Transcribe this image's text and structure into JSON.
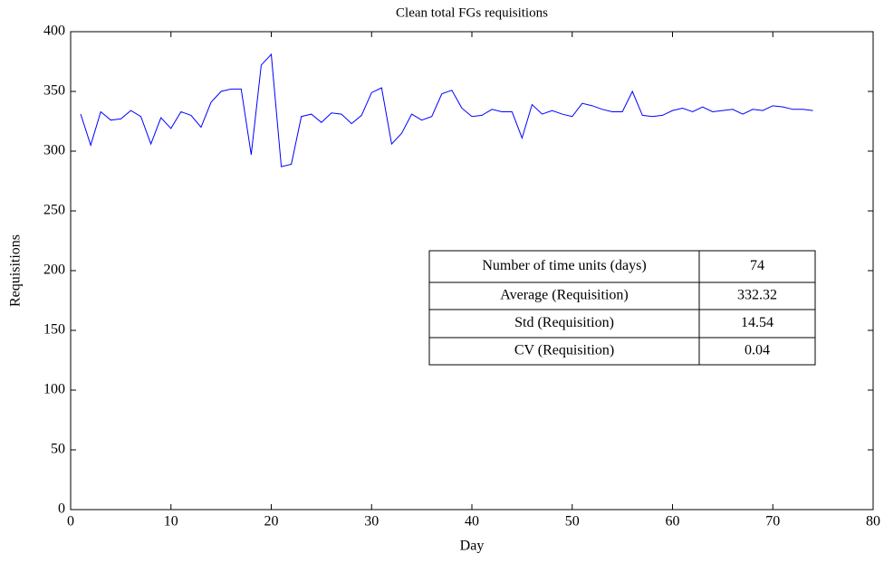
{
  "chart_data": {
    "type": "line",
    "title": "Clean total FGs requisitions",
    "x_label": "Day",
    "y_label": "Requisitions",
    "x": [
      1,
      2,
      3,
      4,
      5,
      6,
      7,
      8,
      9,
      10,
      11,
      12,
      13,
      14,
      15,
      16,
      17,
      18,
      19,
      20,
      21,
      22,
      23,
      24,
      25,
      26,
      27,
      28,
      29,
      30,
      31,
      32,
      33,
      34,
      35,
      36,
      37,
      38,
      39,
      40,
      41,
      42,
      43,
      44,
      45,
      46,
      47,
      48,
      49,
      50,
      51,
      52,
      53,
      54,
      55,
      56,
      57,
      58,
      59,
      60,
      61,
      62,
      63,
      64,
      65,
      66,
      67,
      68,
      69,
      70,
      71,
      72,
      73,
      74
    ],
    "series": [
      {
        "color": "#0000ff",
        "values": [
          331,
          305,
          333,
          326,
          327,
          334,
          329,
          306,
          328,
          319,
          333,
          330,
          320,
          341,
          350,
          352,
          352,
          297,
          372,
          381,
          287,
          289,
          329,
          331,
          324,
          332,
          331,
          323,
          330,
          349,
          353,
          306,
          315,
          331,
          326,
          329,
          348,
          351,
          336,
          329,
          330,
          335,
          333,
          333,
          311,
          339,
          331,
          334,
          331,
          329,
          340,
          338,
          335,
          333,
          333,
          350,
          330,
          329,
          330,
          334,
          336,
          333,
          337,
          333,
          334,
          335,
          331,
          335,
          334,
          338,
          337,
          335,
          335,
          334
        ]
      }
    ],
    "xlim": [
      0,
      80
    ],
    "xticks": [
      0,
      10,
      20,
      30,
      40,
      50,
      60,
      70,
      80
    ],
    "ylim": [
      0,
      400
    ],
    "yticks": [
      0,
      50,
      100,
      150,
      200,
      250,
      300,
      350,
      400
    ],
    "table": {
      "rows": [
        [
          "Number of time units (days)",
          "74"
        ],
        [
          "Average  (Requisition)",
          "332.32"
        ],
        [
          "Std (Requisition)",
          "14.54"
        ],
        [
          "CV (Requisition)",
          "0.04"
        ]
      ]
    }
  }
}
